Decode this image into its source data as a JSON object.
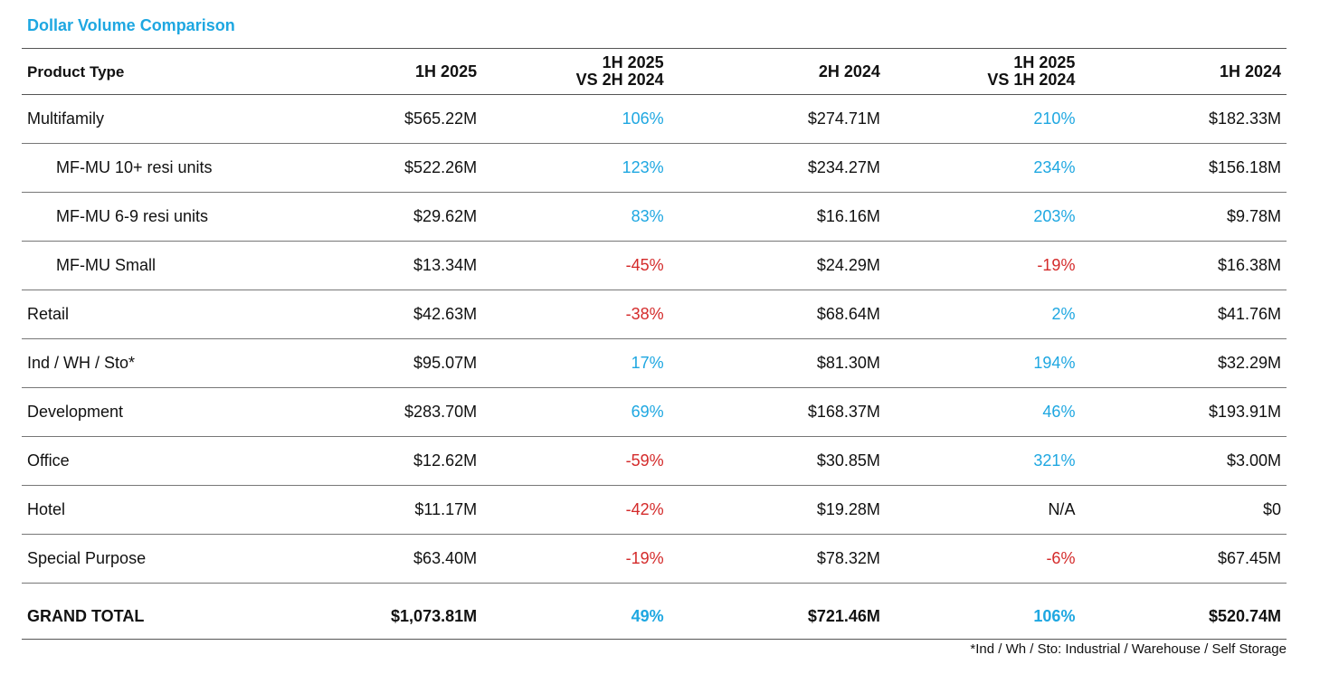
{
  "title": "Dollar Volume Comparison",
  "headers": {
    "product_type": "Product Type",
    "h1_2025": "1H 2025",
    "vs_2h_2024_line1": "1H 2025",
    "vs_2h_2024_line2": "VS 2H 2024",
    "h2_2024": "2H 2024",
    "vs_1h_2024_line1": "1H 2025",
    "vs_1h_2024_line2": "VS 1H 2024",
    "h1_2024": "1H 2024"
  },
  "rows": [
    {
      "label": "Multifamily",
      "h1_2025": "$565.22M",
      "vs_2h": "106%",
      "vs_2h_trend": "pos",
      "h2_2024": "$274.71M",
      "vs_1h": "210%",
      "vs_1h_trend": "pos",
      "h1_2024": "$182.33M",
      "sub": false
    },
    {
      "label": "MF-MU 10+ resi units",
      "h1_2025": "$522.26M",
      "vs_2h": "123%",
      "vs_2h_trend": "pos",
      "h2_2024": "$234.27M",
      "vs_1h": "234%",
      "vs_1h_trend": "pos",
      "h1_2024": "$156.18M",
      "sub": true
    },
    {
      "label": "MF-MU 6-9 resi units",
      "h1_2025": "$29.62M",
      "vs_2h": "83%",
      "vs_2h_trend": "pos",
      "h2_2024": "$16.16M",
      "vs_1h": "203%",
      "vs_1h_trend": "pos",
      "h1_2024": "$9.78M",
      "sub": true
    },
    {
      "label": "MF-MU Small",
      "h1_2025": "$13.34M",
      "vs_2h": "-45%",
      "vs_2h_trend": "neg",
      "h2_2024": "$24.29M",
      "vs_1h": "-19%",
      "vs_1h_trend": "neg",
      "h1_2024": "$16.38M",
      "sub": true
    },
    {
      "label": "Retail",
      "h1_2025": "$42.63M",
      "vs_2h": "-38%",
      "vs_2h_trend": "neg",
      "h2_2024": "$68.64M",
      "vs_1h": "2%",
      "vs_1h_trend": "pos",
      "h1_2024": "$41.76M",
      "sub": false
    },
    {
      "label": "Ind / WH / Sto*",
      "h1_2025": "$95.07M",
      "vs_2h": "17%",
      "vs_2h_trend": "pos",
      "h2_2024": "$81.30M",
      "vs_1h": "194%",
      "vs_1h_trend": "pos",
      "h1_2024": "$32.29M",
      "sub": false
    },
    {
      "label": "Development",
      "h1_2025": "$283.70M",
      "vs_2h": "69%",
      "vs_2h_trend": "pos",
      "h2_2024": "$168.37M",
      "vs_1h": "46%",
      "vs_1h_trend": "pos",
      "h1_2024": "$193.91M",
      "sub": false
    },
    {
      "label": "Office",
      "h1_2025": "$12.62M",
      "vs_2h": "-59%",
      "vs_2h_trend": "neg",
      "h2_2024": "$30.85M",
      "vs_1h": "321%",
      "vs_1h_trend": "pos",
      "h1_2024": "$3.00M",
      "sub": false
    },
    {
      "label": "Hotel",
      "h1_2025": "$11.17M",
      "vs_2h": "-42%",
      "vs_2h_trend": "neg",
      "h2_2024": "$19.28M",
      "vs_1h": "N/A",
      "vs_1h_trend": "neutral",
      "h1_2024": "$0",
      "sub": false
    },
    {
      "label": "Special Purpose",
      "h1_2025": "$63.40M",
      "vs_2h": "-19%",
      "vs_2h_trend": "neg",
      "h2_2024": "$78.32M",
      "vs_1h": "-6%",
      "vs_1h_trend": "neg",
      "h1_2024": "$67.45M",
      "sub": false
    }
  ],
  "total": {
    "label": "GRAND TOTAL",
    "h1_2025": "$1,073.81M",
    "vs_2h": "49%",
    "vs_2h_trend": "pos",
    "h2_2024": "$721.46M",
    "vs_1h": "106%",
    "vs_1h_trend": "pos",
    "h1_2024": "$520.74M"
  },
  "footnote": "*Ind / Wh / Sto: Industrial / Warehouse / Self Storage",
  "colors": {
    "accent": "#1ea7e1",
    "positive": "#1ea7e1",
    "negative": "#d42a2a"
  }
}
